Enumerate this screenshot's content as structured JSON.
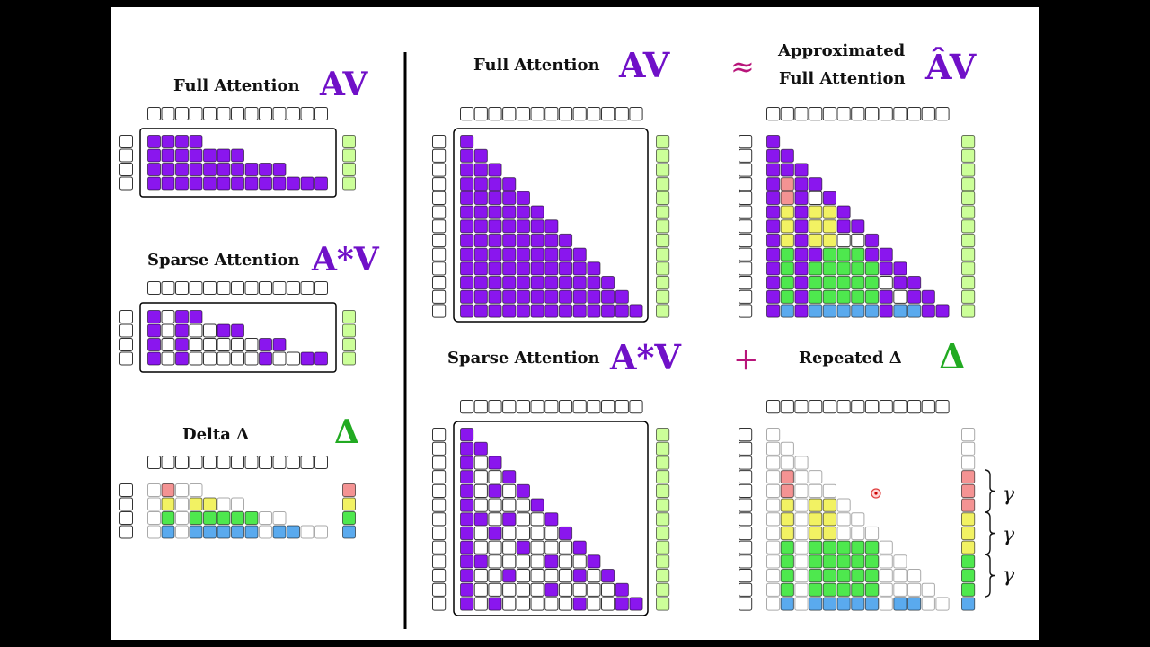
{
  "colors": {
    "purple": "#8a16ee",
    "green": "#4ee84e",
    "yellow": "#f2f263",
    "red": "#f49393",
    "blue": "#5aaaee",
    "lightgreen": "#ccff99",
    "accent_plus": "#b8157a",
    "delta_green": "#22aa22"
  },
  "left": {
    "full": {
      "label": "Full Attention",
      "symbol": "AV"
    },
    "sparse": {
      "label": "Sparse Attention",
      "symbol": "A*V"
    },
    "delta": {
      "label": "Delta Δ",
      "symbol": "Δ"
    }
  },
  "right": {
    "full": {
      "label": "Full Attention",
      "symbol": "AV"
    },
    "approx_sign": "≈",
    "approx": {
      "label_line1": "Approximated",
      "label_line2": "Full Attention",
      "symbol": "ÂV"
    },
    "sparse": {
      "label": "Sparse Attention",
      "symbol": "A*V"
    },
    "plus_sign": "+",
    "repeated": {
      "label": "Repeated Δ",
      "symbol": "Δ"
    },
    "gammas": [
      "γ",
      "γ",
      "γ"
    ]
  }
}
